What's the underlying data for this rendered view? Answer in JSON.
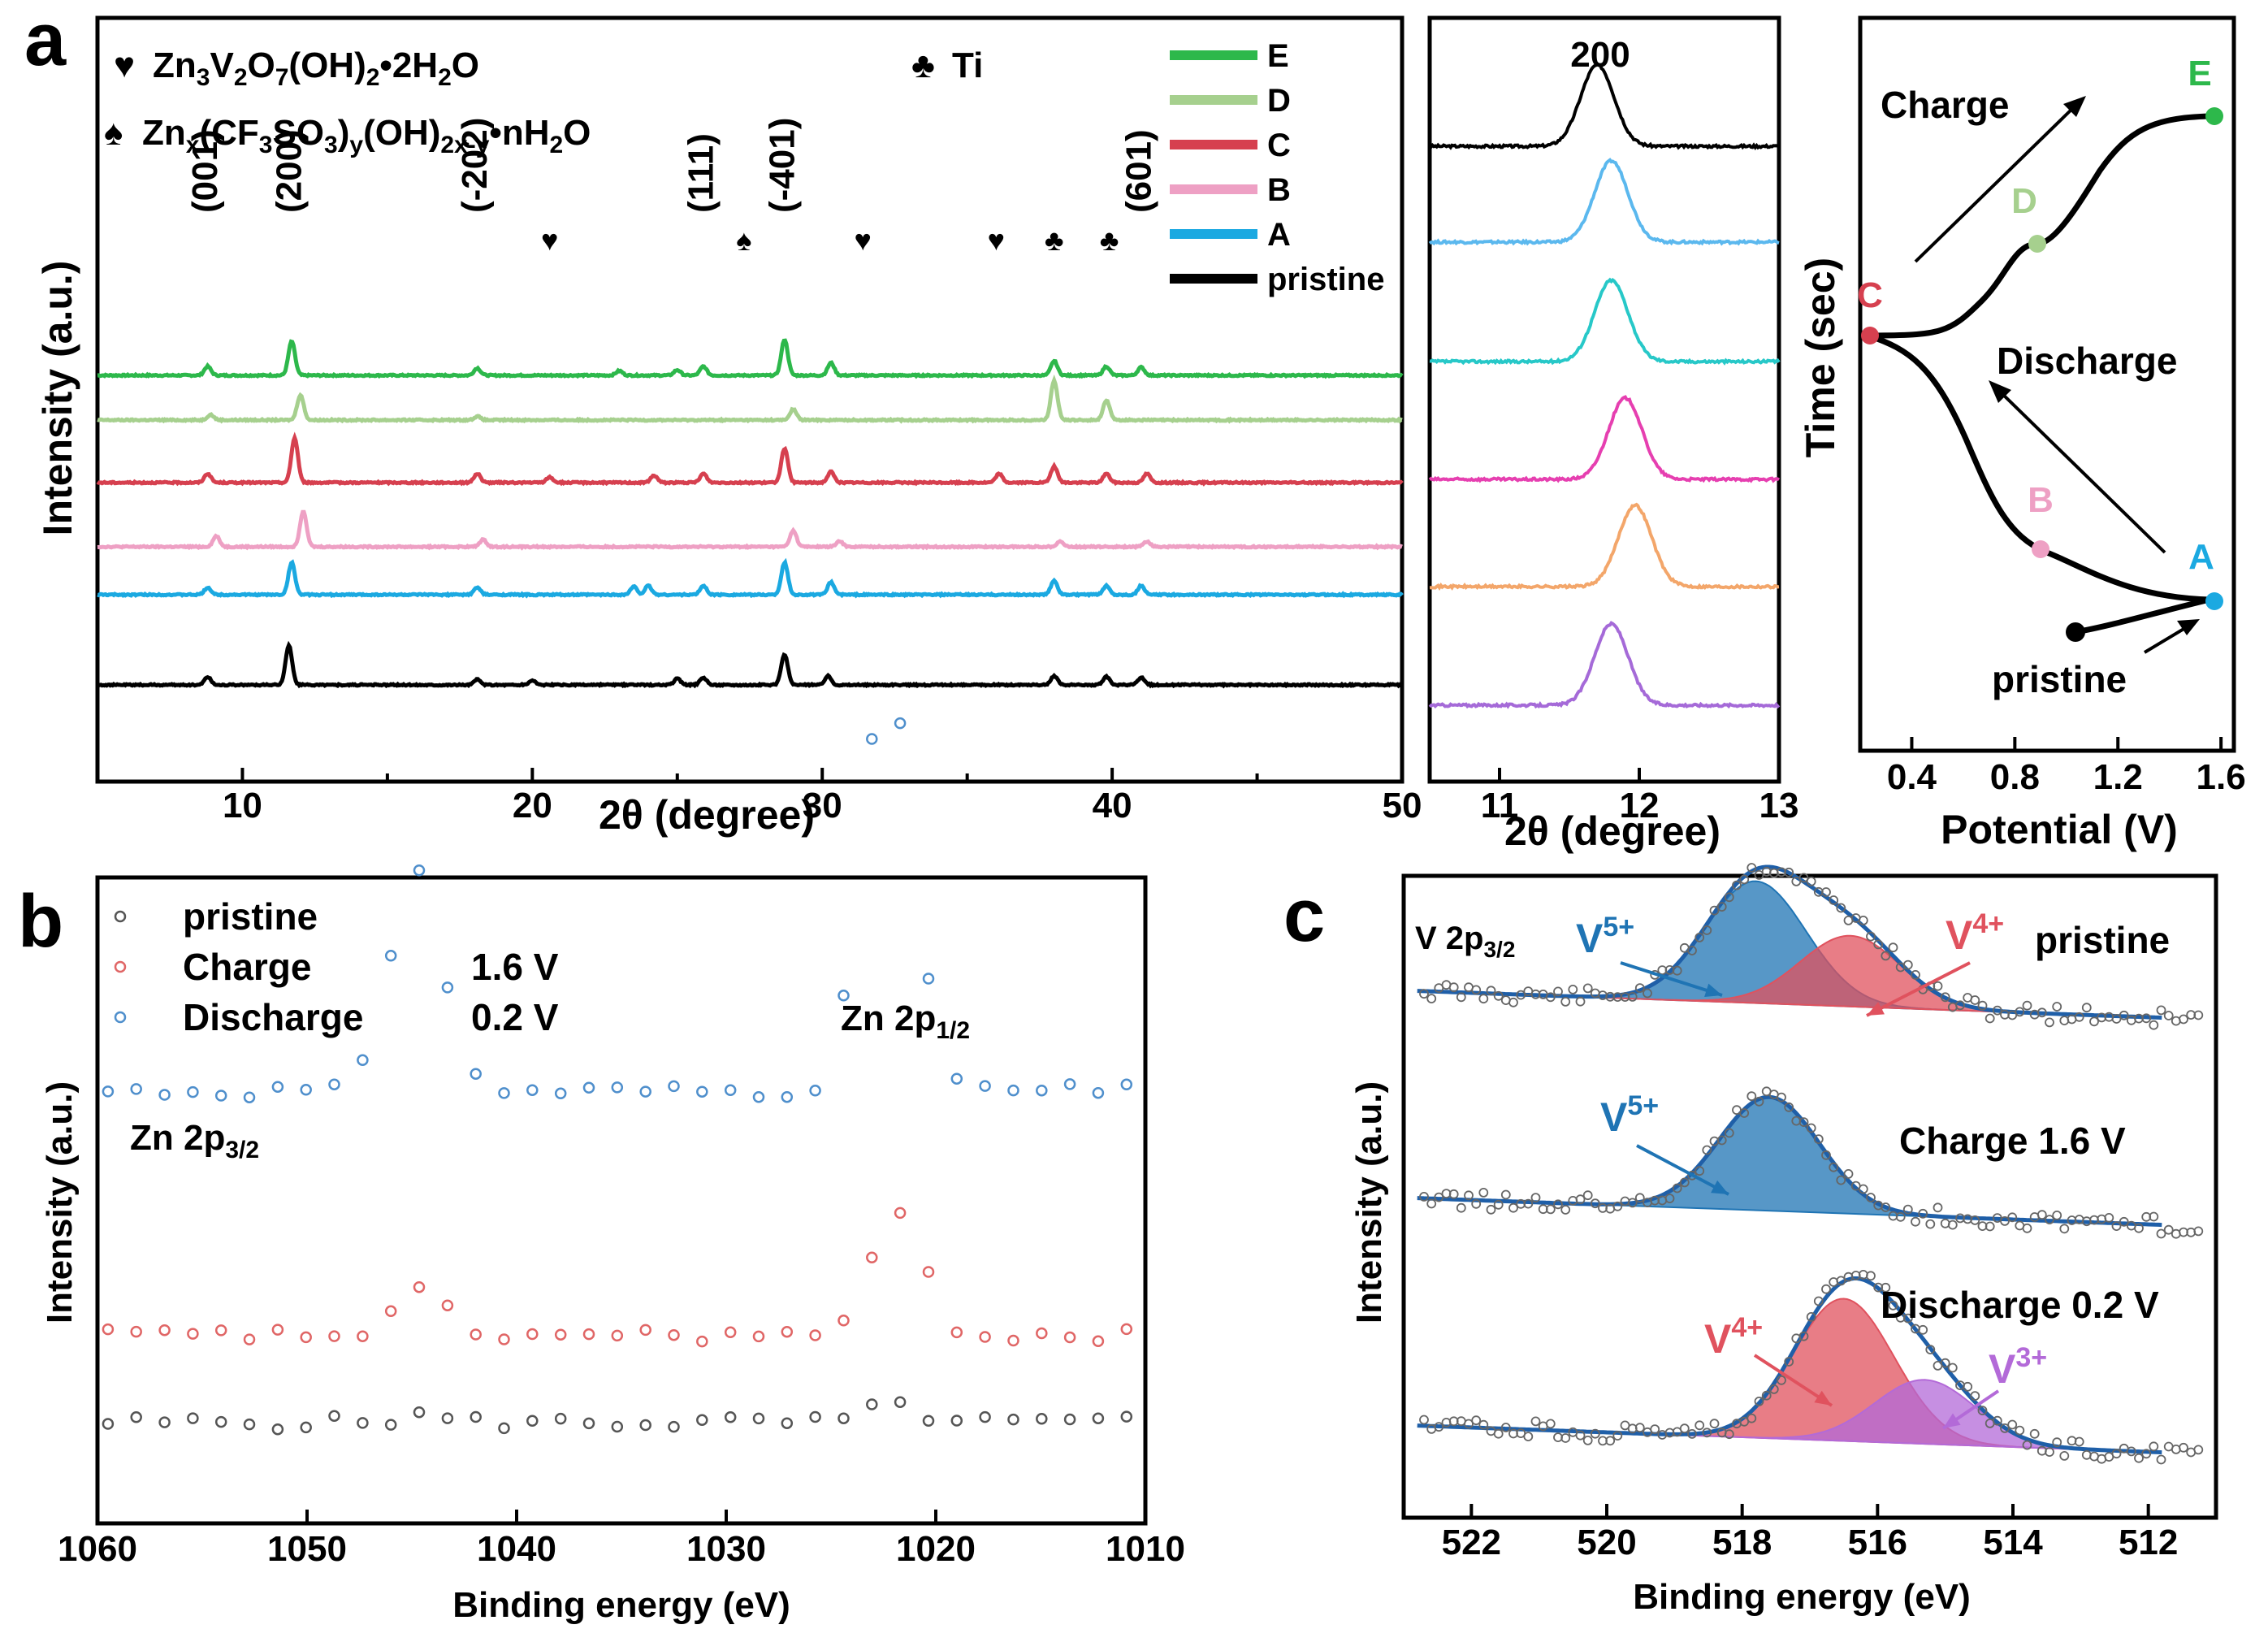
{
  "figure_labels": {
    "a": "a",
    "b": "b",
    "c": "c"
  },
  "colors": {
    "E": "#2db84b",
    "D": "#a6d08e",
    "C": "#d6404f",
    "B": "#eea0c4",
    "A": "#1ba9e1",
    "pristine": "#000000",
    "inset": [
      "#000000",
      "#5bb8ee",
      "#27c8c8",
      "#e63fb0",
      "#f3a66a",
      "#a56ad8"
    ],
    "xps_pristine": "#555555",
    "xps_charge": "#e06666",
    "xps_discharge": "#4f8fcc",
    "v5": "#1f74b4",
    "v4": "#e0525e",
    "v3": "#b36ad8",
    "fit": "#1f5fa8"
  },
  "chart_data": [
    {
      "id": "a-main",
      "type": "line",
      "xlabel_pre": "2",
      "xlabel_theta": "θ",
      "xlabel_post": " (degree)",
      "ylabel": "Intensity (a.u.)",
      "xlim": [
        5,
        50
      ],
      "xticks": [
        "10",
        "20",
        "30",
        "40",
        "50"
      ],
      "legend": [
        "E",
        "D",
        "C",
        "B",
        "A",
        "pristine"
      ],
      "phase_legend": [
        {
          "symbol": "♥",
          "formula": "Zn3V2O7(OH)2•2H2O"
        },
        {
          "symbol": "♣",
          "formula": "Ti"
        },
        {
          "symbol": "♠",
          "formula": "Znx(CF3SO3)y(OH)2x-y•nH2O"
        }
      ],
      "formula1": {
        "a": "Zn",
        "s1": "3",
        "b": "V",
        "s2": "2",
        "c": "O",
        "s3": "7",
        "d": "(OH)",
        "s4": "2",
        "e": "•2H",
        "s5": "2",
        "f": "O"
      },
      "formula2": {
        "a": "Zn",
        "s1": "x",
        "b": "(CF",
        "s2": "3",
        "c": "SO",
        "s3": "3",
        "d": ")",
        "s4": "y",
        "e": "(OH)",
        "s5": "2x-y",
        "f": "•nH",
        "s6": "2",
        "g": "O"
      },
      "peak_labels": [
        {
          "text": "(001)",
          "x": 8.8
        },
        {
          "text": "(200)",
          "x": 11.7
        },
        {
          "text": "(-202)",
          "x": 18.1
        },
        {
          "text": "♥",
          "x": 20.6
        },
        {
          "text": "(111)",
          "x": 25.9
        },
        {
          "text": "♠",
          "x": 27.3
        },
        {
          "text": "(-401)",
          "x": 28.7
        },
        {
          "text": "♥",
          "x": 31.4
        },
        {
          "text": "♥",
          "x": 36.0
        },
        {
          "text": "♣",
          "x": 38.0
        },
        {
          "text": "♣",
          "x": 39.9
        },
        {
          "text": "(601)",
          "x": 41.0
        }
      ],
      "series": [
        {
          "name": "E",
          "offset": 5,
          "peaks": [
            [
              8.8,
              0.5
            ],
            [
              11.7,
              1.9
            ],
            [
              18.1,
              0.4
            ],
            [
              23.0,
              0.25
            ],
            [
              25.0,
              0.3
            ],
            [
              25.9,
              0.5
            ],
            [
              28.7,
              2.0
            ],
            [
              30.3,
              0.7
            ],
            [
              38.0,
              0.8
            ],
            [
              39.8,
              0.5
            ],
            [
              41.0,
              0.45
            ]
          ]
        },
        {
          "name": "D",
          "offset": 4,
          "peaks": [
            [
              8.9,
              0.3
            ],
            [
              12.0,
              1.4
            ],
            [
              18.1,
              0.2
            ],
            [
              29.0,
              0.6
            ],
            [
              38.0,
              2.2
            ],
            [
              39.8,
              1.1
            ]
          ]
        },
        {
          "name": "C",
          "offset": 3,
          "peaks": [
            [
              8.8,
              0.5
            ],
            [
              11.8,
              2.5
            ],
            [
              18.1,
              0.5
            ],
            [
              20.6,
              0.3
            ],
            [
              24.2,
              0.4
            ],
            [
              25.9,
              0.5
            ],
            [
              28.7,
              1.9
            ],
            [
              30.3,
              0.6
            ],
            [
              36.1,
              0.5
            ],
            [
              38.0,
              0.9
            ],
            [
              39.8,
              0.5
            ],
            [
              41.2,
              0.5
            ]
          ]
        },
        {
          "name": "B",
          "offset": 2,
          "peaks": [
            [
              9.1,
              0.6
            ],
            [
              12.1,
              2.0
            ],
            [
              18.3,
              0.4
            ],
            [
              29.0,
              0.9
            ],
            [
              30.6,
              0.3
            ],
            [
              38.2,
              0.3
            ],
            [
              41.2,
              0.3
            ]
          ]
        },
        {
          "name": "A",
          "offset": 1,
          "peaks": [
            [
              8.8,
              0.4
            ],
            [
              11.7,
              1.8
            ],
            [
              18.1,
              0.4
            ],
            [
              23.5,
              0.45
            ],
            [
              24.0,
              0.5
            ],
            [
              25.9,
              0.5
            ],
            [
              28.7,
              1.8
            ],
            [
              30.3,
              0.7
            ],
            [
              38.0,
              0.8
            ],
            [
              39.8,
              0.5
            ],
            [
              41.0,
              0.5
            ]
          ]
        },
        {
          "name": "pristine",
          "offset": 0,
          "peaks": [
            [
              8.8,
              0.45
            ],
            [
              11.6,
              2.2
            ],
            [
              18.1,
              0.3
            ],
            [
              20.0,
              0.25
            ],
            [
              25.0,
              0.35
            ],
            [
              25.9,
              0.4
            ],
            [
              28.7,
              1.7
            ],
            [
              30.2,
              0.5
            ],
            [
              38.0,
              0.5
            ],
            [
              39.8,
              0.45
            ],
            [
              41.0,
              0.4
            ]
          ]
        }
      ]
    },
    {
      "id": "a-inset",
      "type": "line",
      "title": "200",
      "xlim": [
        10.5,
        13
      ],
      "xticks": [
        "11",
        "12",
        "13"
      ],
      "xlabel_pre": "2",
      "xlabel_theta": "θ",
      "xlabel_post": " (degree)",
      "series_centers": [
        11.7,
        11.8,
        11.8,
        11.9,
        11.97,
        11.8
      ]
    },
    {
      "id": "a-right",
      "type": "line",
      "xlabel": "Potential (V)",
      "ylabel": "Time (sec)",
      "xlim": [
        0.2,
        1.65
      ],
      "xticks": [
        "0.4",
        "0.8",
        "1.2",
        "1.6"
      ],
      "points": [
        {
          "label": "E",
          "v": 1.6
        },
        {
          "label": "D",
          "v": 0.9
        },
        {
          "label": "C",
          "v": 0.2
        },
        {
          "label": "B",
          "v": 0.92
        },
        {
          "label": "A",
          "v": 1.6
        }
      ],
      "annotations": {
        "charge": "Charge",
        "discharge": "Discharge",
        "pristine": "pristine"
      }
    },
    {
      "id": "b",
      "type": "scatter",
      "xlabel": "Binding energy (eV)",
      "ylabel": "Intensity (a.u.)",
      "xlim": [
        1060,
        1010
      ],
      "xticks": [
        "1060",
        "1050",
        "1040",
        "1030",
        "1020",
        "1010"
      ],
      "legend": [
        {
          "name": "pristine",
          "voltage": ""
        },
        {
          "name": "Charge",
          "voltage": "1.6 V"
        },
        {
          "name": "Discharge",
          "voltage": "0.2 V"
        }
      ],
      "peak_labels": {
        "zn32": {
          "a": "Zn 2p",
          "sub": "3/2"
        },
        "zn12": {
          "a": "Zn 2p",
          "sub": "1/2"
        }
      },
      "series": [
        {
          "name": "pristine",
          "base": 0.3,
          "peaks": [
            [
              1044.5,
              0.02
            ],
            [
              1022,
              0.05
            ]
          ]
        },
        {
          "name": "Charge",
          "base": 0.55,
          "peaks": [
            [
              1044.6,
              0.12
            ],
            [
              1021.8,
              0.35
            ]
          ]
        },
        {
          "name": "Discharge",
          "base": 1.25,
          "peaks": [
            [
              1044.8,
              0.65
            ],
            [
              1022.3,
              1.2
            ]
          ]
        }
      ]
    },
    {
      "id": "c",
      "type": "area",
      "xlabel": "Binding energy (eV)",
      "ylabel": "Intensity (a.u.)",
      "xlim": [
        523,
        511
      ],
      "xticks": [
        "522",
        "520",
        "518",
        "516",
        "514",
        "512"
      ],
      "title": {
        "a": "V 2p",
        "sub": "3/2"
      },
      "panels": [
        {
          "name": "pristine",
          "label": "pristine",
          "components": [
            {
              "ion": "V",
              "sup": "5+",
              "center": 517.8,
              "h": 1.0
            },
            {
              "ion": "V",
              "sup": "4+",
              "center": 516.4,
              "h": 0.58
            }
          ]
        },
        {
          "name": "charge",
          "label": "Charge 1.6 V",
          "components": [
            {
              "ion": "V",
              "sup": "5+",
              "center": 517.6,
              "h": 1.0
            }
          ]
        },
        {
          "name": "discharge",
          "label": "Discharge 0.2 V",
          "components": [
            {
              "ion": "V",
              "sup": "4+",
              "center": 516.5,
              "h": 1.0
            },
            {
              "ion": "V",
              "sup": "3+",
              "center": 515.3,
              "h": 0.45
            }
          ]
        }
      ]
    }
  ]
}
